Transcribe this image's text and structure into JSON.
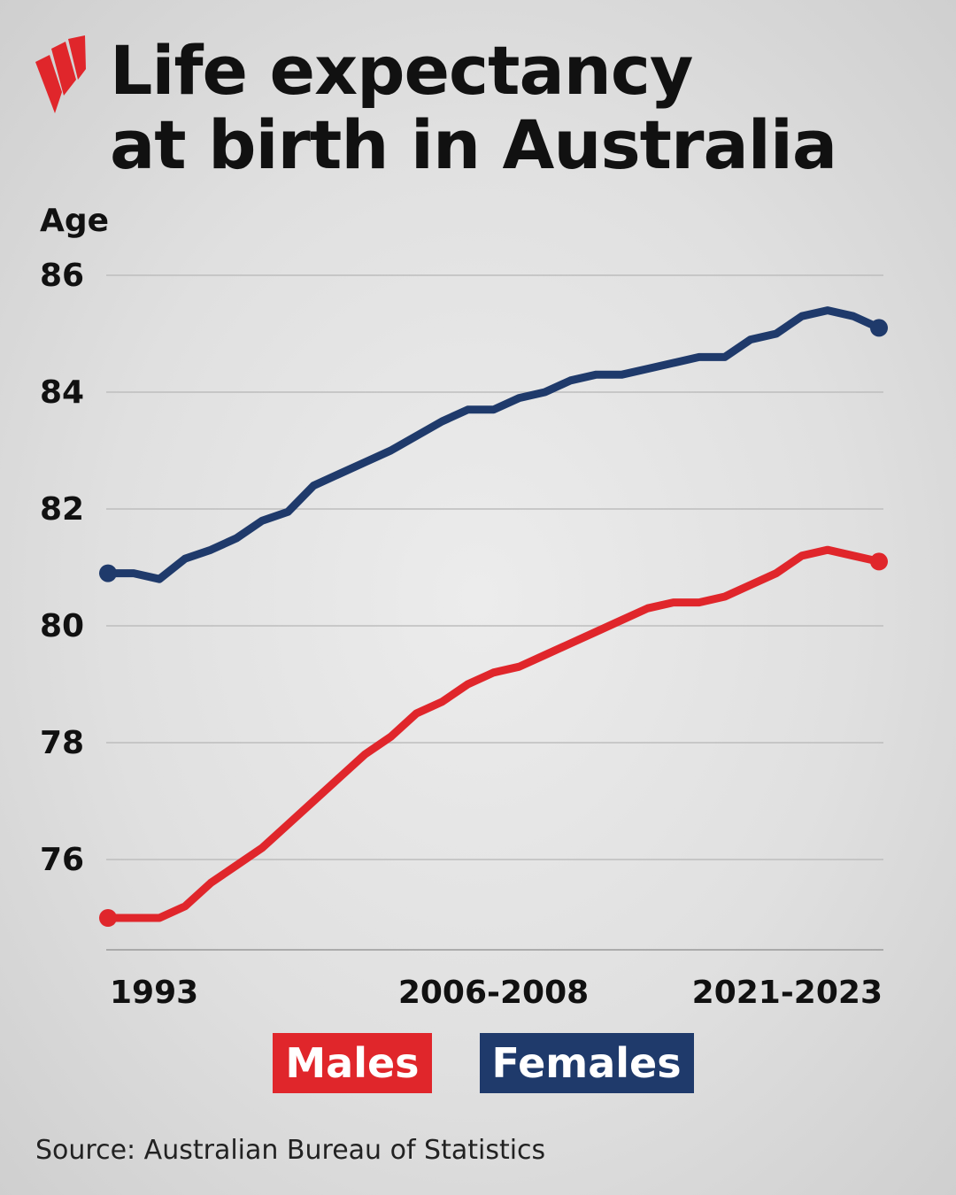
{
  "chart_data": {
    "type": "line",
    "title": [
      "Life expectancy",
      "at birth in Australia"
    ],
    "y_label": "Age",
    "categories": [
      "1993",
      null,
      null,
      null,
      null,
      null,
      null,
      null,
      null,
      null,
      null,
      null,
      null,
      null,
      null,
      "2006-2008",
      null,
      null,
      null,
      null,
      null,
      null,
      null,
      null,
      null,
      null,
      null,
      null,
      null,
      null,
      "2021-2023"
    ],
    "series": [
      {
        "name": "Males",
        "color": "#e0262b",
        "values": [
          75.0,
          75.0,
          75.0,
          75.2,
          75.6,
          75.9,
          76.2,
          76.6,
          77.0,
          77.4,
          77.8,
          78.1,
          78.5,
          78.7,
          79.0,
          79.2,
          79.3,
          79.5,
          79.7,
          79.9,
          80.1,
          80.3,
          80.4,
          80.4,
          80.5,
          80.7,
          80.9,
          81.2,
          81.3,
          81.2,
          81.1
        ]
      },
      {
        "name": "Females",
        "color": "#1f3a6b",
        "values": [
          80.9,
          80.9,
          80.8,
          81.15,
          81.3,
          81.5,
          81.8,
          81.95,
          82.4,
          82.6,
          82.8,
          83.0,
          83.25,
          83.5,
          83.7,
          83.7,
          83.9,
          84.0,
          84.2,
          84.3,
          84.3,
          84.4,
          84.5,
          84.6,
          84.6,
          84.9,
          85.0,
          85.3,
          85.4,
          85.3,
          85.1
        ]
      }
    ],
    "ylim": [
      74.5,
      86
    ],
    "yticks": [
      76,
      78,
      80,
      82,
      84,
      86
    ],
    "grid": true,
    "source": "Source: Australian Bureau of Statistics"
  }
}
